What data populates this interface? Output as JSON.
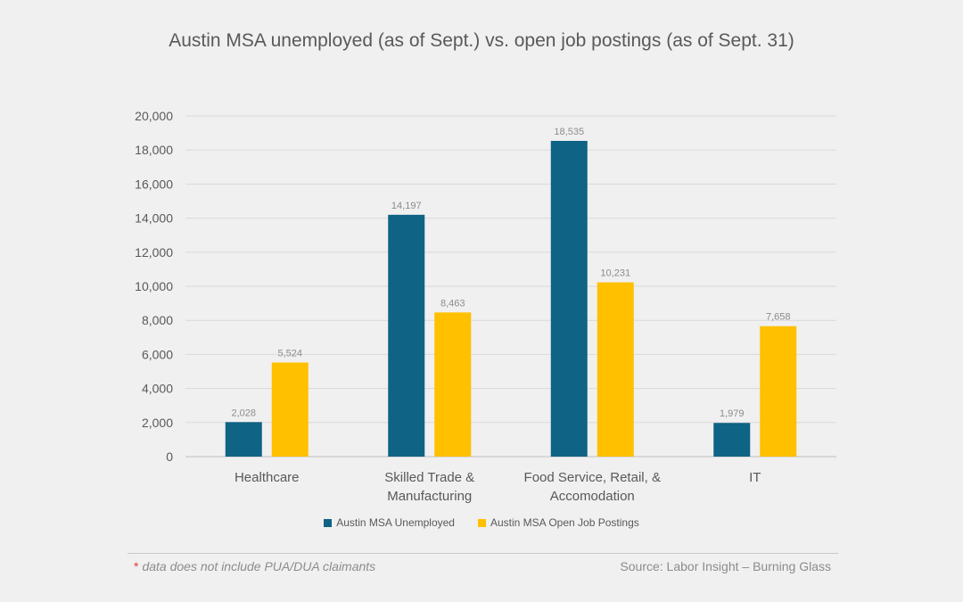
{
  "chart_data": {
    "type": "bar",
    "title": "Austin MSA unemployed (as of Sept.) vs. open job postings (as of Sept. 31)",
    "categories": [
      [
        "Healthcare"
      ],
      [
        "Skilled Trade &",
        "Manufacturing"
      ],
      [
        "Food Service, Retail, &",
        "Accomodation"
      ],
      [
        "IT"
      ]
    ],
    "series": [
      {
        "name": "Austin MSA Unemployed",
        "color": "#0f6384",
        "values": [
          2028,
          14197,
          18535,
          1979
        ]
      },
      {
        "name": "Austin MSA Open Job Postings",
        "color": "#ffc000",
        "values": [
          5524,
          8463,
          10231,
          7658
        ]
      }
    ],
    "data_labels": [
      [
        "2,028",
        "14,197",
        "18,535",
        "1,979"
      ],
      [
        "5,524",
        "8,463",
        "10,231",
        "7,658"
      ]
    ],
    "ylim": [
      0,
      20000
    ],
    "yticks": [
      0,
      2000,
      4000,
      6000,
      8000,
      10000,
      12000,
      14000,
      16000,
      18000,
      20000
    ],
    "ytick_labels": [
      "0",
      "2,000",
      "4,000",
      "6,000",
      "8,000",
      "10,000",
      "12,000",
      "14,000",
      "16,000",
      "18,000",
      "20,000"
    ],
    "grid": true,
    "legend_position": "bottom",
    "xlabel": "",
    "ylabel": ""
  },
  "footnote": {
    "asterisk": "*",
    "text": "data does not include PUA/DUA claimants"
  },
  "source": "Source: Labor Insight – Burning Glass",
  "colors": {
    "background": "#f0f0f0",
    "gridline": "#d9d9d9",
    "axis_text": "#595959",
    "data_label": "#8c8c8c"
  }
}
